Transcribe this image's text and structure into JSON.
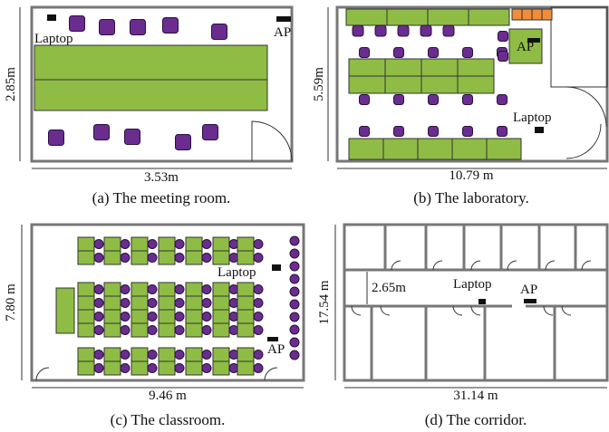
{
  "panels": [
    {
      "caption": "(a) The meeting room.",
      "width_label": "3.53m",
      "height_label": "2.85m",
      "laptop": "Laptop",
      "ap": "AP"
    },
    {
      "caption": "(b) The laboratory.",
      "width_label": "10.79 m",
      "height_label": "5.59m",
      "laptop": "Laptop",
      "ap": "AP"
    },
    {
      "caption": "(c) The classroom.",
      "width_label": "9.46 m",
      "height_label": "7.80 m",
      "laptop": "Laptop",
      "ap": "AP"
    },
    {
      "caption": "(d) The corridor.",
      "width_label": "31.14 m",
      "height_label": "17.54 m",
      "corridor_width_label": "2.65m",
      "laptop": "Laptop",
      "ap": "AP"
    }
  ]
}
